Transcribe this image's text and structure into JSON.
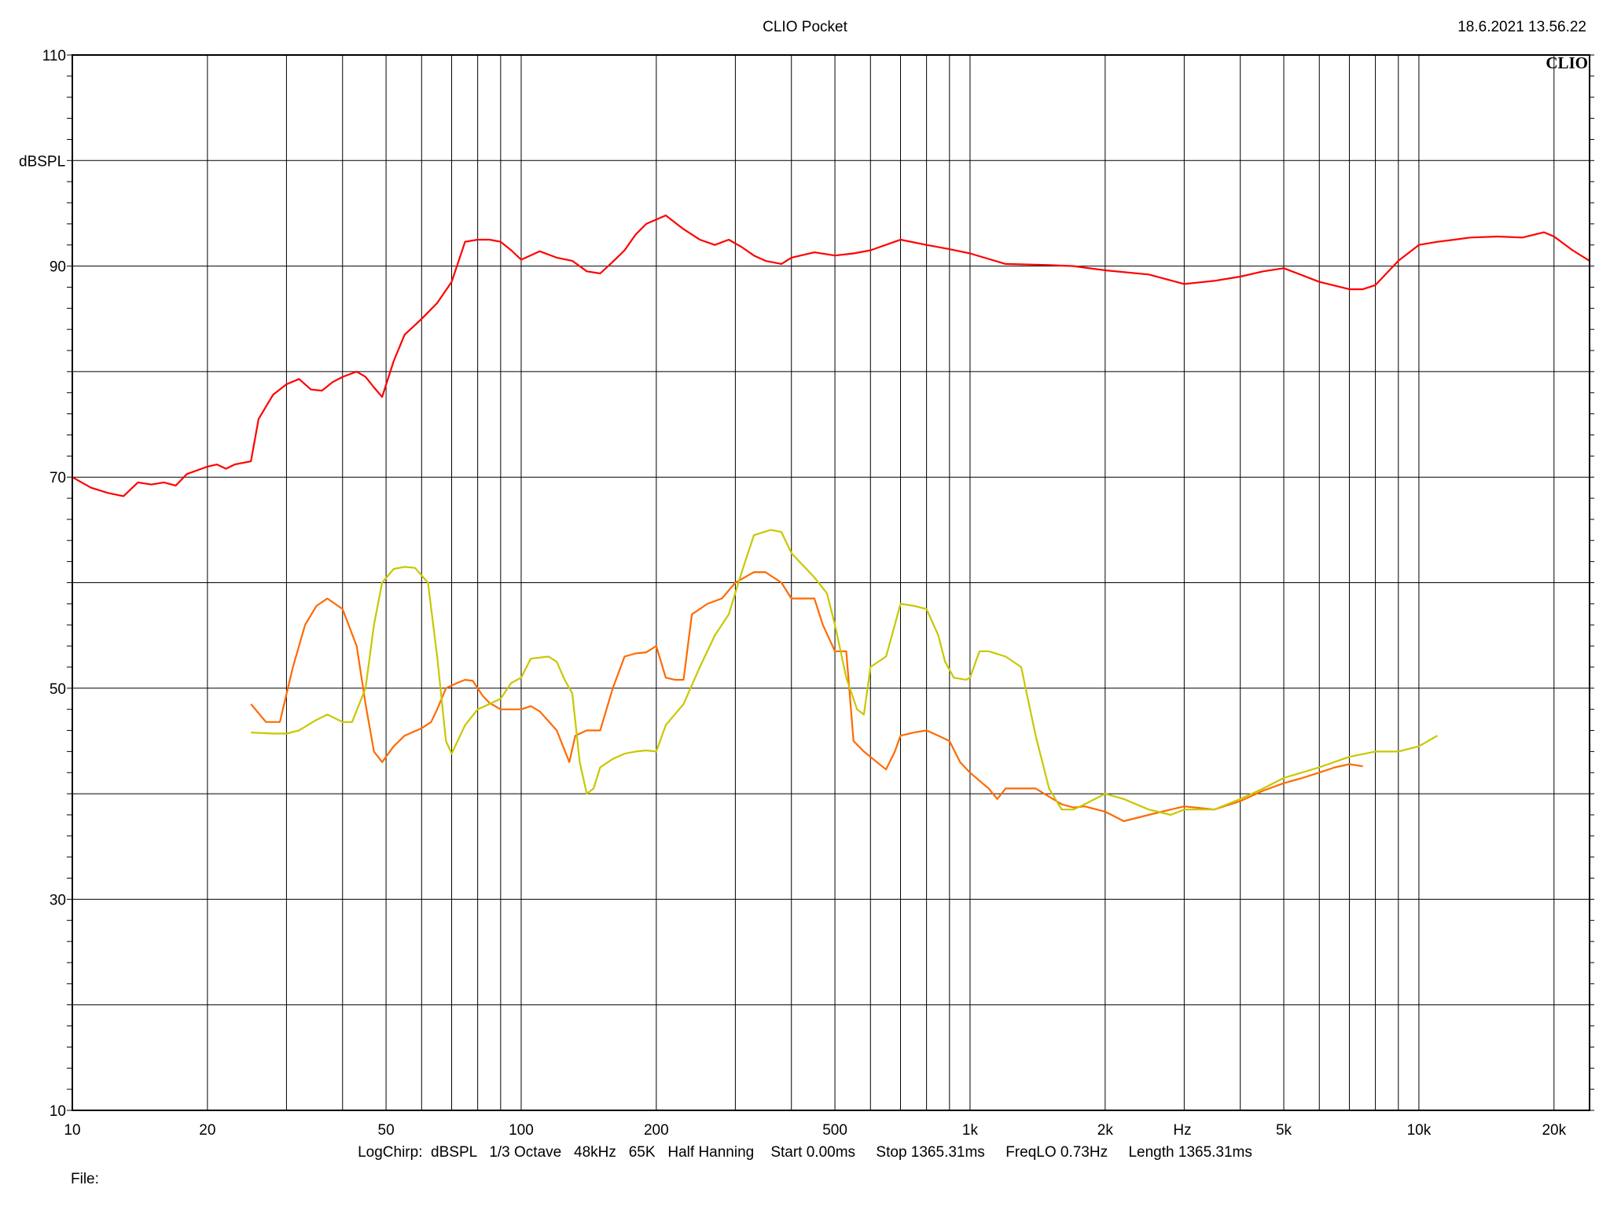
{
  "header": {
    "title": "CLIO Pocket",
    "timestamp": "18.6.2021 13.56.22",
    "brand": "CLIO"
  },
  "footer": {
    "settings": "LogChirp:  dBSPL   1/3 Octave   48kHz   65K   Half Hanning    Start 0.00ms     Stop 1365.31ms     FreqLO 0.73Hz     Length 1365.31ms",
    "file_label": "File:"
  },
  "chart_data": {
    "type": "line",
    "title": "CLIO Pocket",
    "xlabel": "Hz",
    "ylabel": "dBSPL",
    "xscale": "log",
    "xlim": [
      10,
      24000
    ],
    "ylim": [
      10,
      110
    ],
    "grid": true,
    "x_ticks": [
      {
        "value": 10,
        "label": "10"
      },
      {
        "value": 20,
        "label": "20"
      },
      {
        "value": 50,
        "label": "50"
      },
      {
        "value": 100,
        "label": "100"
      },
      {
        "value": 200,
        "label": "200"
      },
      {
        "value": 500,
        "label": "500"
      },
      {
        "value": 1000,
        "label": "1k"
      },
      {
        "value": 2000,
        "label": "2k"
      },
      {
        "value": 5000,
        "label": "5k"
      },
      {
        "value": 10000,
        "label": "10k"
      },
      {
        "value": 20000,
        "label": "20k"
      }
    ],
    "y_ticks": [
      {
        "value": 10,
        "label": "10"
      },
      {
        "value": 30,
        "label": "30"
      },
      {
        "value": 50,
        "label": "50"
      },
      {
        "value": 70,
        "label": "70"
      },
      {
        "value": 90,
        "label": "90"
      },
      {
        "value": 110,
        "label": "110"
      }
    ],
    "series": [
      {
        "color": "#ff0000",
        "points": [
          [
            10,
            70
          ],
          [
            11,
            69
          ],
          [
            12,
            68.5
          ],
          [
            13,
            68.2
          ],
          [
            14,
            69.5
          ],
          [
            15,
            69.3
          ],
          [
            16,
            69.5
          ],
          [
            17,
            69.2
          ],
          [
            18,
            70.3
          ],
          [
            20,
            71
          ],
          [
            21,
            71.2
          ],
          [
            22,
            70.8
          ],
          [
            23,
            71.2
          ],
          [
            25,
            71.5
          ],
          [
            26,
            75.5
          ],
          [
            28,
            77.8
          ],
          [
            30,
            78.8
          ],
          [
            32,
            79.3
          ],
          [
            34,
            78.3
          ],
          [
            36,
            78.2
          ],
          [
            38,
            79
          ],
          [
            40,
            79.5
          ],
          [
            43,
            80
          ],
          [
            45,
            79.5
          ],
          [
            47,
            78.5
          ],
          [
            49,
            77.6
          ],
          [
            52,
            81
          ],
          [
            55,
            83.5
          ],
          [
            60,
            85
          ],
          [
            65,
            86.5
          ],
          [
            70,
            88.5
          ],
          [
            75,
            92.3
          ],
          [
            80,
            92.5
          ],
          [
            85,
            92.5
          ],
          [
            90,
            92.3
          ],
          [
            95,
            91.5
          ],
          [
            100,
            90.6
          ],
          [
            110,
            91.4
          ],
          [
            120,
            90.8
          ],
          [
            130,
            90.5
          ],
          [
            140,
            89.5
          ],
          [
            150,
            89.3
          ],
          [
            160,
            90.4
          ],
          [
            170,
            91.5
          ],
          [
            180,
            93
          ],
          [
            190,
            94
          ],
          [
            210,
            94.8
          ],
          [
            230,
            93.5
          ],
          [
            250,
            92.5
          ],
          [
            270,
            92
          ],
          [
            290,
            92.5
          ],
          [
            310,
            91.8
          ],
          [
            330,
            91
          ],
          [
            350,
            90.5
          ],
          [
            380,
            90.2
          ],
          [
            400,
            90.8
          ],
          [
            450,
            91.3
          ],
          [
            500,
            91
          ],
          [
            550,
            91.2
          ],
          [
            600,
            91.5
          ],
          [
            700,
            92.5
          ],
          [
            800,
            92
          ],
          [
            900,
            91.6
          ],
          [
            1000,
            91.2
          ],
          [
            1200,
            90.2
          ],
          [
            1500,
            90.1
          ],
          [
            1700,
            90
          ],
          [
            2000,
            89.6
          ],
          [
            2500,
            89.2
          ],
          [
            3000,
            88.3
          ],
          [
            3500,
            88.6
          ],
          [
            4000,
            89
          ],
          [
            4500,
            89.5
          ],
          [
            5000,
            89.8
          ],
          [
            6000,
            88.5
          ],
          [
            7000,
            87.8
          ],
          [
            7500,
            87.8
          ],
          [
            8000,
            88.2
          ],
          [
            9000,
            90.5
          ],
          [
            10000,
            92
          ],
          [
            11000,
            92.3
          ],
          [
            12000,
            92.5
          ],
          [
            13000,
            92.7
          ],
          [
            15000,
            92.8
          ],
          [
            17000,
            92.7
          ],
          [
            19000,
            93.2
          ],
          [
            20000,
            92.8
          ],
          [
            22000,
            91.5
          ],
          [
            24000,
            90.5
          ]
        ]
      },
      {
        "color": "#ff6a00",
        "points": [
          [
            25,
            48.5
          ],
          [
            27,
            46.8
          ],
          [
            29,
            46.8
          ],
          [
            31,
            52
          ],
          [
            33,
            56
          ],
          [
            35,
            57.8
          ],
          [
            37,
            58.5
          ],
          [
            40,
            57.5
          ],
          [
            43,
            54
          ],
          [
            45,
            48.5
          ],
          [
            47,
            44
          ],
          [
            49,
            43
          ],
          [
            52,
            44.5
          ],
          [
            55,
            45.5
          ],
          [
            60,
            46.2
          ],
          [
            63,
            46.8
          ],
          [
            65,
            48
          ],
          [
            68,
            50
          ],
          [
            72,
            50.5
          ],
          [
            75,
            50.8
          ],
          [
            78,
            50.7
          ],
          [
            82,
            49.3
          ],
          [
            85,
            48.6
          ],
          [
            90,
            48
          ],
          [
            95,
            48
          ],
          [
            100,
            48
          ],
          [
            105,
            48.3
          ],
          [
            110,
            47.8
          ],
          [
            120,
            46
          ],
          [
            128,
            43
          ],
          [
            132,
            45.5
          ],
          [
            140,
            46
          ],
          [
            150,
            46
          ],
          [
            160,
            50
          ],
          [
            170,
            53
          ],
          [
            180,
            53.3
          ],
          [
            190,
            53.4
          ],
          [
            200,
            54
          ],
          [
            210,
            51
          ],
          [
            220,
            50.8
          ],
          [
            230,
            50.8
          ],
          [
            240,
            57
          ],
          [
            260,
            58
          ],
          [
            280,
            58.5
          ],
          [
            300,
            60
          ],
          [
            330,
            61
          ],
          [
            350,
            61
          ],
          [
            380,
            60
          ],
          [
            400,
            58.5
          ],
          [
            430,
            58.5
          ],
          [
            450,
            58.5
          ],
          [
            470,
            56
          ],
          [
            500,
            53.5
          ],
          [
            530,
            53.5
          ],
          [
            550,
            45
          ],
          [
            580,
            44
          ],
          [
            620,
            43
          ],
          [
            650,
            42.3
          ],
          [
            680,
            44
          ],
          [
            700,
            45.5
          ],
          [
            750,
            45.8
          ],
          [
            800,
            46
          ],
          [
            850,
            45.5
          ],
          [
            900,
            45
          ],
          [
            950,
            43
          ],
          [
            1000,
            42
          ],
          [
            1100,
            40.5
          ],
          [
            1150,
            39.5
          ],
          [
            1200,
            40.5
          ],
          [
            1300,
            40.5
          ],
          [
            1400,
            40.5
          ],
          [
            1600,
            39
          ],
          [
            1700,
            38.7
          ],
          [
            1800,
            38.8
          ],
          [
            2000,
            38.3
          ],
          [
            2200,
            37.4
          ],
          [
            2500,
            38
          ],
          [
            2800,
            38.5
          ],
          [
            3000,
            38.8
          ],
          [
            3500,
            38.5
          ],
          [
            4000,
            39.3
          ],
          [
            4500,
            40.3
          ],
          [
            5000,
            41
          ],
          [
            5500,
            41.5
          ],
          [
            6000,
            42
          ],
          [
            6500,
            42.5
          ],
          [
            7000,
            42.8
          ],
          [
            7500,
            42.6
          ]
        ]
      },
      {
        "color": "#c8c800",
        "points": [
          [
            25,
            45.8
          ],
          [
            28,
            45.7
          ],
          [
            30,
            45.7
          ],
          [
            32,
            46
          ],
          [
            35,
            47
          ],
          [
            37,
            47.5
          ],
          [
            40,
            46.8
          ],
          [
            42,
            46.8
          ],
          [
            45,
            50
          ],
          [
            47,
            56
          ],
          [
            49,
            60
          ],
          [
            52,
            61.3
          ],
          [
            55,
            61.5
          ],
          [
            58,
            61.4
          ],
          [
            62,
            60
          ],
          [
            65,
            53
          ],
          [
            68,
            45
          ],
          [
            70,
            43.8
          ],
          [
            75,
            46.5
          ],
          [
            80,
            48
          ],
          [
            85,
            48.5
          ],
          [
            90,
            49
          ],
          [
            95,
            50.5
          ],
          [
            100,
            51
          ],
          [
            105,
            52.8
          ],
          [
            115,
            53
          ],
          [
            120,
            52.5
          ],
          [
            125,
            50.8
          ],
          [
            130,
            49.5
          ],
          [
            135,
            43
          ],
          [
            140,
            40
          ],
          [
            145,
            40.5
          ],
          [
            150,
            42.5
          ],
          [
            160,
            43.3
          ],
          [
            170,
            43.8
          ],
          [
            180,
            44
          ],
          [
            190,
            44.1
          ],
          [
            200,
            44
          ],
          [
            210,
            46.5
          ],
          [
            230,
            48.5
          ],
          [
            250,
            52
          ],
          [
            270,
            55
          ],
          [
            290,
            57
          ],
          [
            310,
            61
          ],
          [
            330,
            64.5
          ],
          [
            360,
            65
          ],
          [
            380,
            64.8
          ],
          [
            400,
            62.8
          ],
          [
            450,
            60.5
          ],
          [
            480,
            59
          ],
          [
            500,
            56
          ],
          [
            530,
            51
          ],
          [
            560,
            48
          ],
          [
            580,
            47.5
          ],
          [
            600,
            52
          ],
          [
            650,
            53
          ],
          [
            670,
            55
          ],
          [
            700,
            58
          ],
          [
            750,
            57.8
          ],
          [
            800,
            57.5
          ],
          [
            850,
            55
          ],
          [
            880,
            52.5
          ],
          [
            920,
            51
          ],
          [
            980,
            50.8
          ],
          [
            1000,
            51
          ],
          [
            1050,
            53.5
          ],
          [
            1100,
            53.5
          ],
          [
            1200,
            53
          ],
          [
            1300,
            52
          ],
          [
            1400,
            45.5
          ],
          [
            1500,
            40.5
          ],
          [
            1600,
            38.5
          ],
          [
            1700,
            38.5
          ],
          [
            1800,
            39
          ],
          [
            2000,
            40
          ],
          [
            2200,
            39.5
          ],
          [
            2500,
            38.5
          ],
          [
            2800,
            38
          ],
          [
            3000,
            38.5
          ],
          [
            3500,
            38.5
          ],
          [
            4000,
            39.5
          ],
          [
            4500,
            40.5
          ],
          [
            5000,
            41.5
          ],
          [
            6000,
            42.5
          ],
          [
            7000,
            43.5
          ],
          [
            8000,
            44
          ],
          [
            9000,
            44
          ],
          [
            10000,
            44.5
          ],
          [
            11000,
            45.5
          ]
        ]
      }
    ]
  }
}
